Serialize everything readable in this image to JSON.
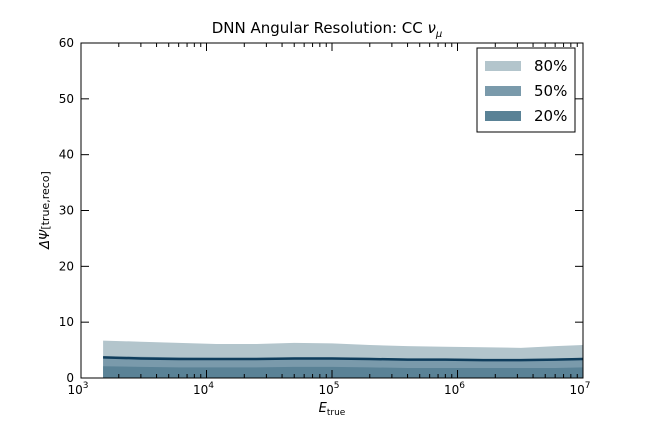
{
  "chart_data": {
    "type": "area",
    "title_main": "DNN Angular Resolution: CC ",
    "title_symbol": "ν",
    "title_symbol_sub": "μ",
    "xlabel_main": "E",
    "xlabel_sub": "true",
    "ylabel_main": "ΔΨ",
    "ylabel_rest": "[true,reco]",
    "xscale": "log",
    "xlim": [
      1000,
      10000000
    ],
    "ylim": [
      0,
      60
    ],
    "xticks": [
      {
        "base": "10",
        "exp": "3",
        "value": 1000
      },
      {
        "base": "10",
        "exp": "4",
        "value": 10000
      },
      {
        "base": "10",
        "exp": "5",
        "value": 100000
      },
      {
        "base": "10",
        "exp": "6",
        "value": 1000000
      },
      {
        "base": "10",
        "exp": "7",
        "value": 10000000
      }
    ],
    "yticks": [
      "0",
      "10",
      "20",
      "30",
      "40",
      "50",
      "60"
    ],
    "grid": false,
    "legend_position": "top-right",
    "x": [
      1500,
      3000,
      6000,
      12000,
      25000,
      50000,
      100000,
      200000,
      400000,
      800000,
      1600000,
      3200000,
      6000000,
      10000000
    ],
    "median": [
      3.7,
      3.5,
      3.4,
      3.4,
      3.4,
      3.5,
      3.5,
      3.4,
      3.3,
      3.3,
      3.2,
      3.2,
      3.3,
      3.4
    ],
    "series": [
      {
        "name": "80%",
        "color": "#b3c5cc",
        "lower": [
          0.0,
          0.0,
          0.0,
          0.0,
          0.0,
          0.0,
          0.0,
          0.0,
          0.0,
          0.0,
          0.0,
          0.0,
          0.0,
          0.0
        ],
        "upper": [
          6.7,
          6.5,
          6.3,
          6.1,
          6.1,
          6.3,
          6.2,
          5.9,
          5.7,
          5.6,
          5.5,
          5.4,
          5.7,
          5.9
        ]
      },
      {
        "name": "50%",
        "color": "#7a9aab",
        "lower": [
          0.0,
          0.0,
          0.0,
          0.0,
          0.0,
          0.0,
          0.0,
          0.0,
          0.0,
          0.0,
          0.0,
          0.0,
          0.0,
          0.0
        ],
        "upper": [
          3.9,
          3.8,
          3.7,
          3.6,
          3.6,
          3.7,
          3.7,
          3.6,
          3.5,
          3.5,
          3.4,
          3.4,
          3.5,
          3.6
        ]
      },
      {
        "name": "20%",
        "color": "#5a8296",
        "lower": [
          0.0,
          0.0,
          0.0,
          0.0,
          0.0,
          0.0,
          0.0,
          0.0,
          0.0,
          0.0,
          0.0,
          0.0,
          0.0,
          0.0
        ],
        "upper": [
          2.1,
          2.0,
          1.9,
          1.9,
          1.9,
          2.0,
          2.0,
          1.9,
          1.8,
          1.8,
          1.8,
          1.8,
          1.8,
          1.9
        ]
      }
    ],
    "median_color": "#0f3d5c"
  }
}
